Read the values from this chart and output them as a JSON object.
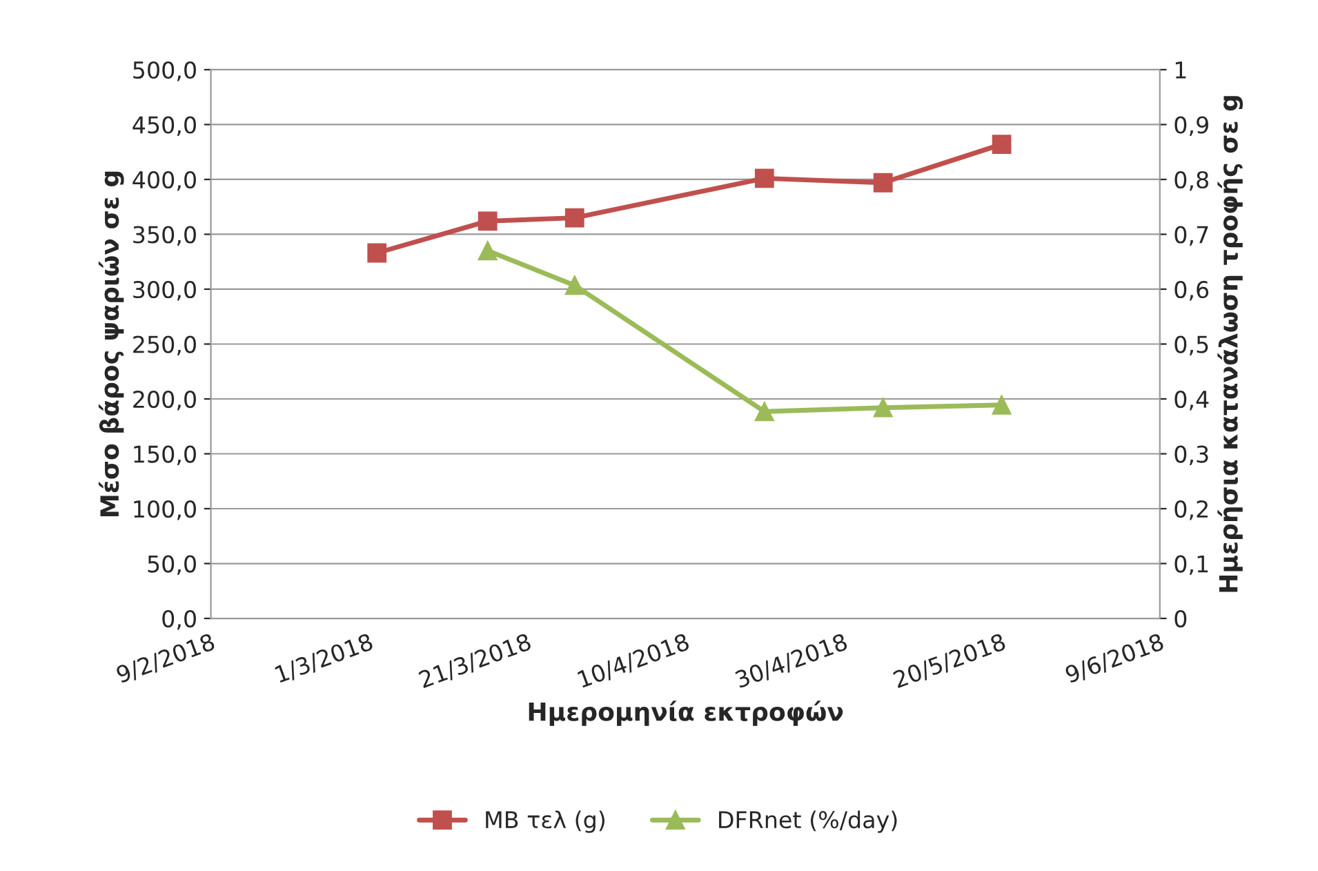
{
  "chart_data": {
    "type": "line",
    "xlabel": "Ημερομηνία εκτροφών",
    "ylabel": "Μέσο βάρος ψαριών σε g",
    "y2label": "Ημερήσια κατανάλωση τροφής σε g",
    "xlim": [
      "2018-02-09",
      "2018-06-09"
    ],
    "xticks": [
      {
        "value": "2018-02-09",
        "label": "9/2/2018"
      },
      {
        "value": "2018-03-01",
        "label": "1/3/2018"
      },
      {
        "value": "2018-03-21",
        "label": "21/3/2018"
      },
      {
        "value": "2018-04-10",
        "label": "10/4/2018"
      },
      {
        "value": "2018-04-30",
        "label": "30/4/2018"
      },
      {
        "value": "2018-05-20",
        "label": "20/5/2018"
      },
      {
        "value": "2018-06-09",
        "label": "9/6/2018"
      }
    ],
    "ylim": [
      0,
      500
    ],
    "yticks": [
      {
        "value": 0,
        "label": "0,0"
      },
      {
        "value": 50,
        "label": "50,0"
      },
      {
        "value": 100,
        "label": "100,0"
      },
      {
        "value": 150,
        "label": "150,0"
      },
      {
        "value": 200,
        "label": "200,0"
      },
      {
        "value": 250,
        "label": "250,0"
      },
      {
        "value": 300,
        "label": "300,0"
      },
      {
        "value": 350,
        "label": "350,0"
      },
      {
        "value": 400,
        "label": "400,0"
      },
      {
        "value": 450,
        "label": "450,0"
      },
      {
        "value": 500,
        "label": "500,0"
      }
    ],
    "y2lim": [
      0,
      1
    ],
    "y2ticks": [
      0,
      {
        "value": 0.1,
        "label": "0,1"
      },
      {
        "value": 0.2,
        "label": "0,2"
      },
      {
        "value": 0.3,
        "label": "0,3"
      },
      {
        "value": 0.4,
        "label": "0,4"
      },
      {
        "value": 0.5,
        "label": "0,5"
      },
      {
        "value": 0.6,
        "label": "0,6"
      },
      {
        "value": 0.7,
        "label": "0,7"
      },
      {
        "value": 0.8,
        "label": "0,8"
      },
      {
        "value": 0.9,
        "label": "0,9"
      },
      1
    ],
    "grid": "y",
    "legend": "bottom",
    "series": [
      {
        "name": "MB τελ (g)",
        "color": "#c0504d",
        "marker": "square",
        "x": [
          "2018-03-02",
          "2018-03-16",
          "2018-03-27",
          "2018-04-20",
          "2018-05-05",
          "2018-05-20"
        ],
        "values": [
          333,
          362,
          365,
          401,
          397,
          432
        ]
      },
      {
        "name": "DFRnet (%/day)",
        "color": "#9bbb59",
        "marker": "triangle",
        "axis": "y2",
        "x": [
          "2018-03-16",
          "2018-03-27",
          "2018-04-20",
          "2018-05-05",
          "2018-05-20"
        ],
        "values": [
          0.67,
          0.607,
          0.377,
          0.384,
          0.389
        ]
      }
    ]
  }
}
